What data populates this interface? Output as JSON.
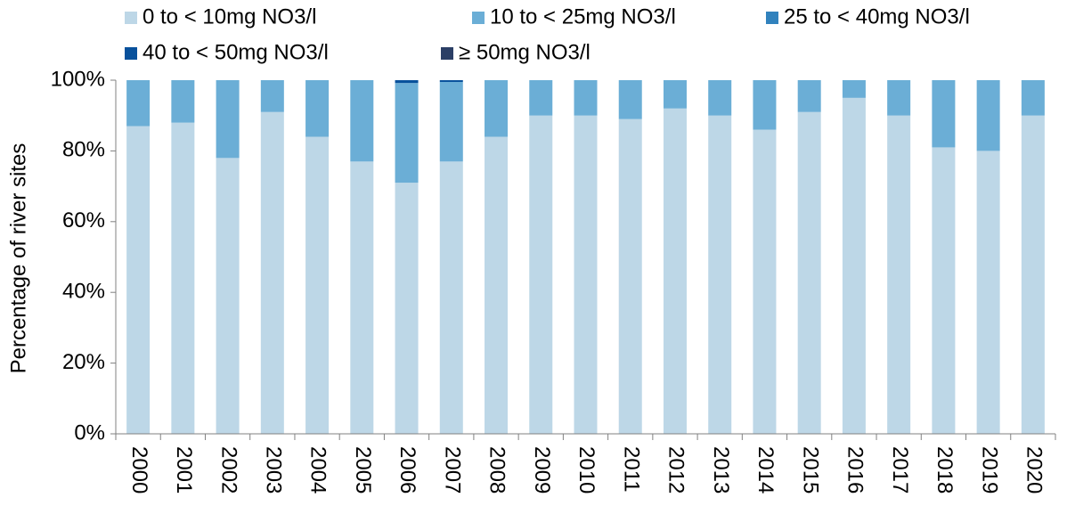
{
  "chart_data": {
    "type": "stacked-bar",
    "y_label": "Percentage of river sites",
    "categories": [
      "2000",
      "2001",
      "2002",
      "2003",
      "2004",
      "2005",
      "2006",
      "2007",
      "2008",
      "2009",
      "2010",
      "2011",
      "2012",
      "2013",
      "2014",
      "2015",
      "2016",
      "2017",
      "2018",
      "2019",
      "2020"
    ],
    "series": [
      {
        "name": "0 to < 10mg NO3/l",
        "color": "#bdd7e7",
        "values": [
          87,
          88,
          78,
          91,
          84,
          77,
          71,
          77,
          84,
          90,
          90,
          89,
          92,
          90,
          86,
          91,
          95,
          90,
          81,
          80,
          90
        ]
      },
      {
        "name": "10 to < 25mg NO3/l",
        "color": "#6baed6",
        "values": [
          13,
          12,
          22,
          9,
          16,
          23,
          28.2,
          22.5,
          16,
          10,
          10,
          11,
          8,
          10,
          14,
          9,
          5,
          10,
          19,
          20,
          10
        ]
      },
      {
        "name": "25 to < 40mg NO3/l",
        "color": "#3182bd",
        "values": [
          0,
          0,
          0,
          0,
          0,
          0,
          0,
          0,
          0,
          0,
          0,
          0,
          0,
          0,
          0,
          0,
          0,
          0,
          0,
          0,
          0
        ]
      },
      {
        "name": "40 to < 50mg NO3/l",
        "color": "#08519c",
        "values": [
          0,
          0,
          0,
          0,
          0,
          0,
          0.8,
          0.5,
          0,
          0,
          0,
          0,
          0,
          0,
          0,
          0,
          0,
          0,
          0,
          0,
          0
        ]
      },
      {
        "name": "≥ 50mg NO3/l",
        "color": "#2b3f66",
        "values": [
          0,
          0,
          0,
          0,
          0,
          0,
          0,
          0,
          0,
          0,
          0,
          0,
          0,
          0,
          0,
          0,
          0,
          0,
          0,
          0,
          0
        ]
      }
    ],
    "ylim": [
      0,
      100
    ],
    "yticks": [
      {
        "value": 0,
        "label": "0%"
      },
      {
        "value": 20,
        "label": "20%"
      },
      {
        "value": 40,
        "label": "40%"
      },
      {
        "value": 60,
        "label": "60%"
      },
      {
        "value": 80,
        "label": "80%"
      },
      {
        "value": 100,
        "label": "100%"
      }
    ],
    "grid": false
  }
}
